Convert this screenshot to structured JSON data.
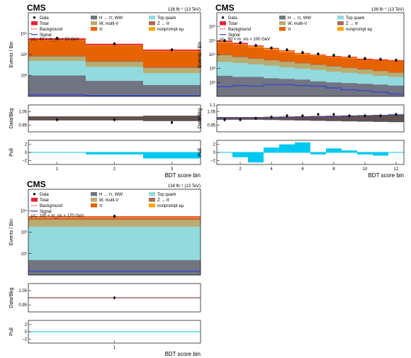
{
  "figure": {
    "experiment": "CMS",
    "lumi": "138 fb⁻¹ (13 TeV)",
    "x_title": "BDT score bin",
    "y_title_main": "Events / Bin",
    "y_title_ratio": "Data/Bkg",
    "y_title_pull": "Pull"
  },
  "legend": [
    {
      "key": "data",
      "label": "Data",
      "kind": "marker",
      "color": "#000000"
    },
    {
      "key": "h_tautau_ww",
      "label": "H → ττ, WW",
      "kind": "fill",
      "color": "#717581"
    },
    {
      "key": "top",
      "label": "Top quark",
      "kind": "fill",
      "color": "#92dadd"
    },
    {
      "key": "total",
      "label": "Total",
      "kind": "fill",
      "color": "#e42536"
    },
    {
      "key": "w_multiv",
      "label": "W, multi-V",
      "kind": "fill",
      "color": "#b9ac70"
    },
    {
      "key": "zll",
      "label": "Z → ℓℓ",
      "kind": "fill",
      "color": "#a96b59"
    },
    {
      "key": "background",
      "label": "Background",
      "kind": "dash",
      "color": "#e42536"
    },
    {
      "key": "tautau",
      "label": "ττ",
      "kind": "fill",
      "color": "#e76300"
    },
    {
      "key": "nonprompt",
      "label": "nonprompt eμ",
      "kind": "fill",
      "color": "#ffa90e"
    },
    {
      "key": "signal",
      "label": "Signal",
      "kind": "line",
      "color": "#3f48cc"
    }
  ],
  "colors": {
    "pull_fill": "#00c8f0",
    "uncertainty_band": "#555555",
    "signal": "#3f48cc",
    "total": "#e42536"
  },
  "chart_data": [
    {
      "type": "bar",
      "panel": "top-left",
      "category": "μτₑ: 40 < m_vis < 50 GeV",
      "x_ticks": [
        1,
        2,
        3
      ],
      "xlim": [
        0.5,
        3.5
      ],
      "ylim": [
        10,
        100000
      ],
      "y_log": true,
      "y_ticks": [
        {
          "v": 100,
          "label": "10²"
        },
        {
          "v": 1000,
          "label": "10³"
        },
        {
          "v": 10000,
          "label": "10⁴"
        }
      ],
      "components": [
        {
          "key": "h_tautau_ww",
          "values": [
            100,
            55,
            35
          ]
        },
        {
          "key": "top",
          "values": [
            500,
            260,
            130
          ]
        },
        {
          "key": "w_multiv",
          "values": [
            800,
            450,
            230
          ]
        },
        {
          "key": "zll",
          "values": [
            900,
            500,
            255
          ]
        },
        {
          "key": "tautau",
          "values": [
            4800,
            2700,
            1440
          ]
        },
        {
          "key": "nonprompt",
          "values": [
            5000,
            2800,
            1500
          ]
        }
      ],
      "total": [
        6000,
        3300,
        1750
      ],
      "data": [
        6050,
        3250,
        1700
      ],
      "signal": [
        12,
        11,
        11
      ],
      "ratio": {
        "ylim": [
          0.9,
          1.1
        ],
        "ticks": [
          {
            "v": 0.95,
            "label": "0.95"
          },
          {
            "v": 1.05,
            "label": "1.05"
          }
        ],
        "values": [
          0.99,
          0.99,
          0.97
        ],
        "band": [
          0.015,
          0.015,
          0.02
        ]
      },
      "pull": {
        "ylim": [
          -3,
          3
        ],
        "ticks": [
          -2,
          0,
          2
        ],
        "values": [
          0,
          -0.5,
          -1.5
        ]
      }
    },
    {
      "type": "bar",
      "panel": "top-right",
      "category": "μτₑ: 90 < m_vis < 100 GeV",
      "x_ticks": [
        2,
        4,
        6,
        8,
        10,
        12
      ],
      "xlim": [
        0.5,
        12.5
      ],
      "ylim": [
        10,
        10000000
      ],
      "y_log": true,
      "y_ticks": [
        {
          "v": 100,
          "label": "10²"
        },
        {
          "v": 1000,
          "label": "10³"
        },
        {
          "v": 10000,
          "label": "10⁴"
        },
        {
          "v": 100000,
          "label": "10⁵"
        },
        {
          "v": 1000000,
          "label": "10⁶"
        }
      ],
      "components": [
        {
          "key": "h_tautau_ww",
          "values": [
            300,
            250,
            250,
            200,
            180,
            160,
            120,
            100,
            90,
            80,
            70,
            60
          ]
        },
        {
          "key": "top",
          "values": [
            3000,
            2500,
            2000,
            1600,
            1200,
            1000,
            800,
            600,
            500,
            400,
            300,
            250
          ]
        },
        {
          "key": "w_multiv",
          "values": [
            9000,
            6500,
            5000,
            3800,
            3000,
            2300,
            1800,
            1400,
            1100,
            850,
            650,
            500
          ]
        },
        {
          "key": "zll",
          "values": [
            10000,
            7200,
            5600,
            4200,
            3300,
            2550,
            2000,
            1550,
            1200,
            930,
            710,
            550
          ]
        },
        {
          "key": "tautau",
          "values": [
            70000,
            50000,
            32000,
            22000,
            15000,
            10000,
            8000,
            6500,
            5500,
            4500,
            4000,
            3500
          ]
        },
        {
          "key": "nonprompt",
          "values": [
            80000,
            56000,
            38000,
            26000,
            18000,
            12500,
            9500,
            7500,
            6300,
            5200,
            4600,
            4000
          ]
        }
      ],
      "total": [
        100000,
        70000,
        45000,
        30000,
        20000,
        13000,
        10000,
        8000,
        7000,
        5000,
        4500,
        4000
      ],
      "data": [
        100000,
        70000,
        45000,
        30000,
        22000,
        14000,
        11000,
        9000,
        7500,
        5200,
        4600,
        4000
      ],
      "signal": [
        50,
        60,
        55,
        70,
        70,
        60,
        55,
        40,
        30,
        25,
        20,
        15
      ],
      "ratio": {
        "ylim": [
          0.9,
          1.1
        ],
        "ticks": [
          {
            "v": 0.95,
            "label": "0.95"
          },
          {
            "v": 1.05,
            "label": "1.05"
          },
          {
            "v": 1.1,
            "label": "1.1"
          }
        ],
        "values": [
          0.99,
          0.99,
          1.0,
          1.01,
          1.02,
          1.02,
          1.03,
          1.03,
          1.02,
          1.02,
          1.02,
          1.03
        ],
        "band": [
          0.01,
          0.01,
          0.01,
          0.012,
          0.014,
          0.016,
          0.018,
          0.02,
          0.022,
          0.024,
          0.026,
          0.028
        ],
        "signal_ratio": [
          1.001,
          1.001,
          1.002,
          1.003,
          1.005,
          1.007,
          1.009,
          1.012,
          1.016,
          1.02,
          1.024,
          1.03
        ]
      },
      "pull": {
        "ylim": [
          -3,
          3
        ],
        "ticks": [
          -2,
          0,
          2
        ],
        "values": [
          0,
          -1.2,
          -2.5,
          1.2,
          2,
          2.5,
          -0.5,
          1,
          0.5,
          -0.5,
          -0.8,
          0
        ]
      }
    },
    {
      "type": "bar",
      "panel": "bottom-left",
      "category": "μτₑ: 100 < m_vis < 170 GeV",
      "x_ticks": [
        1
      ],
      "xlim": [
        0.5,
        1.5
      ],
      "ylim": [
        10,
        100000
      ],
      "y_log": true,
      "y_ticks": [
        {
          "v": 100,
          "label": "10²"
        },
        {
          "v": 1000,
          "label": "10³"
        },
        {
          "v": 10000,
          "label": "10⁴"
        }
      ],
      "components": [
        {
          "key": "h_tautau_ww",
          "values": [
            50
          ]
        },
        {
          "key": "top",
          "values": [
            1800
          ]
        },
        {
          "key": "w_multiv",
          "values": [
            3800
          ]
        },
        {
          "key": "zll",
          "values": [
            4200
          ]
        },
        {
          "key": "tautau",
          "values": [
            4600
          ]
        },
        {
          "key": "nonprompt",
          "values": [
            5000
          ]
        }
      ],
      "total": [
        5500
      ],
      "data": [
        5500
      ],
      "signal": [
        15
      ],
      "ratio": {
        "ylim": [
          0.9,
          1.1
        ],
        "ticks": [
          {
            "v": 0.95,
            "label": "0.95"
          },
          {
            "v": 1.05,
            "label": "1.05"
          }
        ],
        "values": [
          1.0
        ],
        "band": [
          0.003
        ]
      },
      "pull": {
        "ylim": [
          -3,
          3
        ],
        "ticks": [
          -2,
          0,
          2
        ],
        "values": [
          0
        ]
      }
    }
  ]
}
